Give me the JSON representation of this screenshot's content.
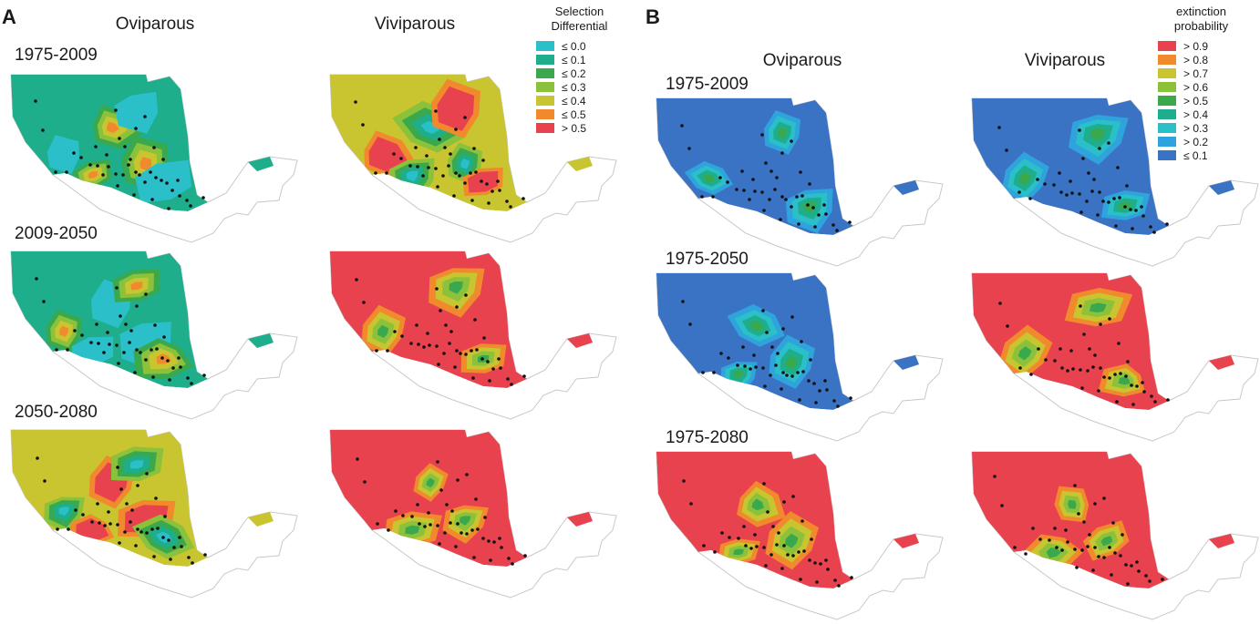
{
  "panels": [
    {
      "letter": "A",
      "columns": [
        "Oviparous",
        "Viviparous"
      ],
      "periods": [
        "1975-2009",
        "2009-2050",
        "2050-2080"
      ],
      "legend": {
        "title_lines": [
          "Selection",
          "Differential"
        ],
        "items": [
          {
            "label": "≤ 0.0",
            "color": "#2bbfc9"
          },
          {
            "label": "≤ 0.1",
            "color": "#1fae8c"
          },
          {
            "label": "≤ 0.2",
            "color": "#3aa84c"
          },
          {
            "label": "≤ 0.3",
            "color": "#8cc13b"
          },
          {
            "label": "≤ 0.4",
            "color": "#c9c531"
          },
          {
            "label": "≤ 0.5",
            "color": "#f08a2c"
          },
          {
            "label": "> 0.5",
            "color": "#e8424f"
          }
        ]
      },
      "maps": [
        {
          "id": "A-ovi-1",
          "base": 1,
          "dominant_class": "≤ 0.1"
        },
        {
          "id": "A-vivi-1",
          "base": 4,
          "dominant_class": "≤ 0.4"
        },
        {
          "id": "A-ovi-2",
          "base": 1,
          "dominant_class": "≤ 0.1"
        },
        {
          "id": "A-vivi-2",
          "base": 6,
          "dominant_class": "> 0.5"
        },
        {
          "id": "A-ovi-3",
          "base": 4,
          "dominant_class": "≤ 0.4"
        },
        {
          "id": "A-vivi-3",
          "base": 6,
          "dominant_class": "> 0.5"
        }
      ]
    },
    {
      "letter": "B",
      "columns": [
        "Oviparous",
        "Viviparous"
      ],
      "periods": [
        "1975-2009",
        "1975-2050",
        "1975-2080"
      ],
      "legend": {
        "title_lines": [
          "extinction",
          "probability"
        ],
        "items": [
          {
            "label": "> 0.9",
            "color": "#e8424f"
          },
          {
            "label": "> 0.8",
            "color": "#f08a2c"
          },
          {
            "label": "> 0.7",
            "color": "#c9c531"
          },
          {
            "label": "> 0.6",
            "color": "#8cc13b"
          },
          {
            "label": "> 0.5",
            "color": "#3aa84c"
          },
          {
            "label": "> 0.4",
            "color": "#1fae8c"
          },
          {
            "label": "> 0.3",
            "color": "#2bbfc9"
          },
          {
            "label": "> 0.2",
            "color": "#2fa3dc"
          },
          {
            "label": "≤ 0.1",
            "color": "#3a72c4"
          }
        ]
      },
      "maps": [
        {
          "id": "B-ovi-1",
          "base": 8,
          "dominant_class": "≤ 0.1"
        },
        {
          "id": "B-vivi-1",
          "base": 8,
          "dominant_class": "≤ 0.1"
        },
        {
          "id": "B-ovi-2",
          "base": 8,
          "dominant_class": "≤ 0.1"
        },
        {
          "id": "B-vivi-2",
          "base": 0,
          "dominant_class": "> 0.9"
        },
        {
          "id": "B-ovi-3",
          "base": 0,
          "dominant_class": "> 0.9"
        },
        {
          "id": "B-vivi-3",
          "base": 0,
          "dominant_class": "> 0.9"
        }
      ]
    }
  ],
  "colors": {
    "outline": "#c8c8c8",
    "point": "#111111"
  }
}
